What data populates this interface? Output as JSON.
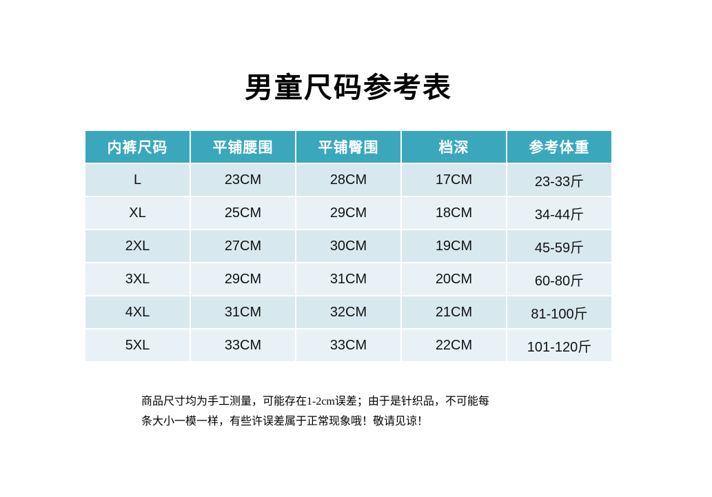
{
  "chart_data": {
    "type": "table",
    "title": "男童尺码参考表",
    "columns": [
      "内裤尺码",
      "平铺腰围",
      "平铺臀围",
      "档深",
      "参考体重"
    ],
    "rows": [
      [
        "L",
        "23CM",
        "28CM",
        "17CM",
        "23-33斤"
      ],
      [
        "XL",
        "25CM",
        "29CM",
        "18CM",
        "34-44斤"
      ],
      [
        "2XL",
        "27CM",
        "30CM",
        "19CM",
        "45-59斤"
      ],
      [
        "3XL",
        "29CM",
        "31CM",
        "20CM",
        "60-80斤"
      ],
      [
        "4XL",
        "31CM",
        "32CM",
        "21CM",
        "81-100斤"
      ],
      [
        "5XL",
        "33CM",
        "33CM",
        "22CM",
        "101-120斤"
      ]
    ]
  },
  "footer": {
    "note_lines": [
      "商品尺寸均为手工测量，可能存在1-2cm误差；由于是针织品，不可能每",
      "条大小一模一样，有些许误差属于正常现象哦！敬请见谅！"
    ]
  },
  "colors": {
    "header_bg": "#3ba7bd",
    "header_text": "#ffffff",
    "row_odd_bg": "#d8e8ef",
    "row_even_bg": "#e8f2f6",
    "page_bg": "#ffffff",
    "body_text": "#111111"
  }
}
